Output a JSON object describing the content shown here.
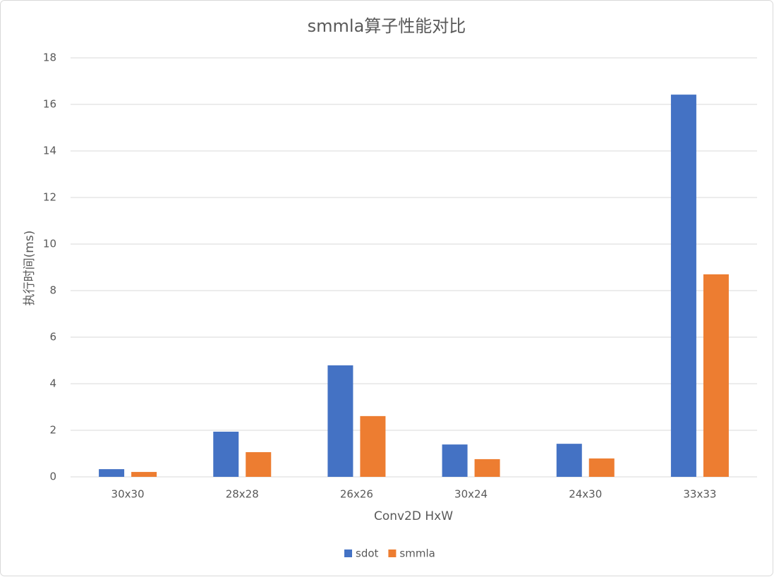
{
  "chart_data": {
    "type": "bar",
    "title": "smmla算子性能对比",
    "x_label": "Conv2D HxW",
    "y_label": "执行时间(ms)",
    "categories": [
      "30x30",
      "28x28",
      "26x26",
      "30x24",
      "24x30",
      "33x33"
    ],
    "series": [
      {
        "name": "sdot",
        "color": "#4472c4",
        "values": [
          0.33,
          1.94,
          4.79,
          1.39,
          1.42,
          16.42
        ]
      },
      {
        "name": "smmla",
        "color": "#ed7d31",
        "values": [
          0.21,
          1.06,
          2.61,
          0.76,
          0.79,
          8.7
        ]
      }
    ],
    "ylim": [
      0,
      18
    ],
    "yticks": [
      0,
      2,
      4,
      6,
      8,
      10,
      12,
      14,
      16,
      18
    ],
    "grid": true,
    "legend": "bottom"
  }
}
